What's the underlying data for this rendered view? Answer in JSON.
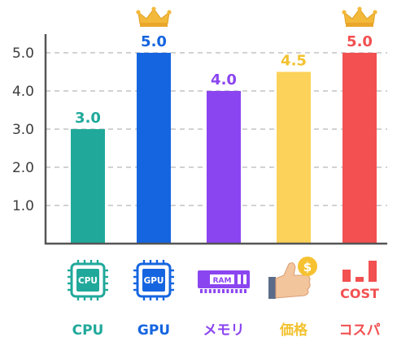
{
  "chart_data": {
    "type": "bar",
    "title": "",
    "xlabel": "",
    "ylabel": "",
    "ylim": [
      0,
      5.5
    ],
    "yticks": [
      "1.0",
      "2.0",
      "3.0",
      "4.0",
      "5.0"
    ],
    "ytick_values": [
      1,
      2,
      3,
      4,
      5
    ],
    "grid": "horizontal-dashed",
    "categories": [
      "CPU",
      "GPU",
      "メモリ",
      "価格",
      "コスパ"
    ],
    "values": [
      3.0,
      5.0,
      4.0,
      4.5,
      5.0
    ],
    "value_labels": [
      "3.0",
      "5.0",
      "4.0",
      "4.5",
      "5.0"
    ],
    "colors": [
      "#20a99b",
      "#1565e0",
      "#8b45f0",
      "#fdd25a",
      "#f25051"
    ],
    "label_colors": [
      "#20a99b",
      "#1565e0",
      "#8b45f0",
      "#f2c230",
      "#f25051"
    ],
    "crowned": [
      false,
      true,
      false,
      false,
      true
    ],
    "icons": [
      {
        "name": "cpu-chip-icon",
        "text": "CPU"
      },
      {
        "name": "gpu-chip-icon",
        "text": "GPU"
      },
      {
        "name": "ram-module-icon",
        "text": "RAM"
      },
      {
        "name": "thumbs-up-coin-icon",
        "text": "$"
      },
      {
        "name": "cost-bars-icon",
        "text": "COST"
      }
    ]
  }
}
